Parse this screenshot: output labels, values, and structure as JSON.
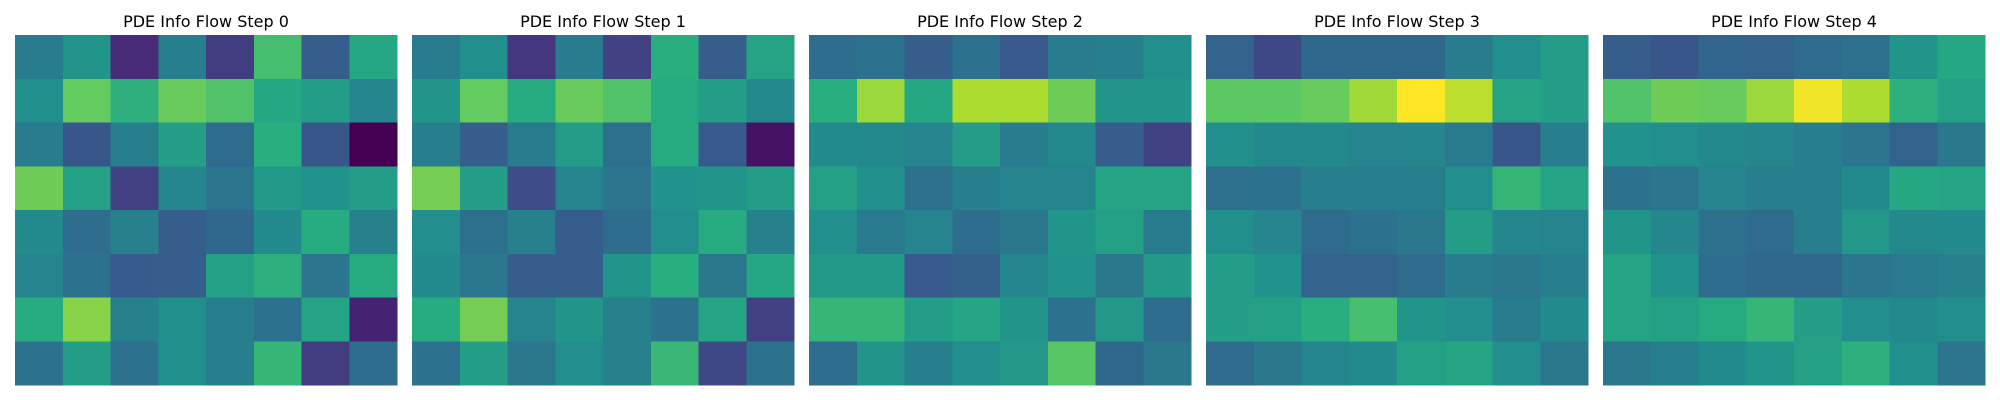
{
  "chart_data": [
    {
      "type": "heatmap",
      "title": "PDE Info Flow Step 0",
      "colormap": "viridis",
      "vmin": 0,
      "vmax": 1,
      "grid": false,
      "rows": 8,
      "cols": 8,
      "values": [
        [
          0.42,
          0.52,
          0.12,
          0.43,
          0.18,
          0.7,
          0.3,
          0.6
        ],
        [
          0.5,
          0.76,
          0.64,
          0.77,
          0.72,
          0.6,
          0.55,
          0.46
        ],
        [
          0.42,
          0.27,
          0.43,
          0.56,
          0.35,
          0.63,
          0.27,
          0.0
        ],
        [
          0.78,
          0.57,
          0.2,
          0.46,
          0.39,
          0.54,
          0.51,
          0.55
        ],
        [
          0.48,
          0.36,
          0.44,
          0.3,
          0.34,
          0.48,
          0.62,
          0.44
        ],
        [
          0.45,
          0.38,
          0.29,
          0.3,
          0.57,
          0.64,
          0.39,
          0.61
        ],
        [
          0.62,
          0.82,
          0.44,
          0.5,
          0.43,
          0.38,
          0.58,
          0.1
        ],
        [
          0.38,
          0.56,
          0.38,
          0.5,
          0.43,
          0.66,
          0.18,
          0.36
        ]
      ]
    },
    {
      "type": "heatmap",
      "title": "PDE Info Flow Step 1",
      "colormap": "viridis",
      "vmin": 0,
      "vmax": 1,
      "grid": false,
      "rows": 8,
      "cols": 8,
      "values": [
        [
          0.42,
          0.5,
          0.16,
          0.42,
          0.2,
          0.63,
          0.3,
          0.58
        ],
        [
          0.52,
          0.76,
          0.62,
          0.77,
          0.72,
          0.61,
          0.55,
          0.47
        ],
        [
          0.43,
          0.3,
          0.42,
          0.55,
          0.37,
          0.62,
          0.28,
          0.05
        ],
        [
          0.79,
          0.56,
          0.23,
          0.45,
          0.39,
          0.51,
          0.52,
          0.56
        ],
        [
          0.49,
          0.37,
          0.44,
          0.3,
          0.36,
          0.49,
          0.62,
          0.44
        ],
        [
          0.48,
          0.4,
          0.3,
          0.3,
          0.52,
          0.63,
          0.4,
          0.6
        ],
        [
          0.62,
          0.79,
          0.45,
          0.52,
          0.44,
          0.38,
          0.59,
          0.2
        ],
        [
          0.38,
          0.56,
          0.4,
          0.49,
          0.44,
          0.67,
          0.22,
          0.38
        ]
      ]
    },
    {
      "type": "heatmap",
      "title": "PDE Info Flow Step 2",
      "colormap": "viridis",
      "vmin": 0,
      "vmax": 1,
      "grid": false,
      "rows": 8,
      "cols": 8,
      "values": [
        [
          0.36,
          0.38,
          0.3,
          0.38,
          0.28,
          0.42,
          0.43,
          0.5
        ],
        [
          0.63,
          0.85,
          0.6,
          0.88,
          0.88,
          0.78,
          0.52,
          0.52
        ],
        [
          0.48,
          0.47,
          0.45,
          0.55,
          0.42,
          0.47,
          0.3,
          0.2
        ],
        [
          0.57,
          0.5,
          0.37,
          0.43,
          0.45,
          0.45,
          0.59,
          0.59
        ],
        [
          0.5,
          0.41,
          0.45,
          0.36,
          0.4,
          0.52,
          0.57,
          0.42
        ],
        [
          0.54,
          0.54,
          0.28,
          0.31,
          0.46,
          0.51,
          0.4,
          0.54
        ],
        [
          0.66,
          0.66,
          0.55,
          0.59,
          0.52,
          0.38,
          0.53,
          0.36
        ],
        [
          0.36,
          0.52,
          0.43,
          0.49,
          0.53,
          0.74,
          0.34,
          0.4
        ]
      ]
    },
    {
      "type": "heatmap",
      "title": "PDE Info Flow Step 3",
      "colormap": "viridis",
      "vmin": 0,
      "vmax": 1,
      "grid": false,
      "rows": 8,
      "cols": 8,
      "values": [
        [
          0.32,
          0.22,
          0.34,
          0.34,
          0.34,
          0.42,
          0.49,
          0.55
        ],
        [
          0.75,
          0.75,
          0.77,
          0.86,
          1.0,
          0.9,
          0.58,
          0.56
        ],
        [
          0.5,
          0.47,
          0.47,
          0.45,
          0.46,
          0.41,
          0.27,
          0.43
        ],
        [
          0.37,
          0.38,
          0.43,
          0.43,
          0.43,
          0.49,
          0.66,
          0.58
        ],
        [
          0.5,
          0.45,
          0.35,
          0.38,
          0.4,
          0.55,
          0.46,
          0.45
        ],
        [
          0.55,
          0.51,
          0.32,
          0.32,
          0.35,
          0.42,
          0.4,
          0.43
        ],
        [
          0.56,
          0.57,
          0.63,
          0.7,
          0.52,
          0.49,
          0.42,
          0.48
        ],
        [
          0.35,
          0.4,
          0.46,
          0.48,
          0.57,
          0.59,
          0.49,
          0.4
        ]
      ]
    },
    {
      "type": "heatmap",
      "title": "PDE Info Flow Step 4",
      "colormap": "viridis",
      "vmin": 0,
      "vmax": 1,
      "grid": false,
      "rows": 8,
      "cols": 8,
      "values": [
        [
          0.3,
          0.27,
          0.33,
          0.32,
          0.35,
          0.37,
          0.52,
          0.6
        ],
        [
          0.72,
          0.78,
          0.77,
          0.85,
          0.98,
          0.88,
          0.64,
          0.57
        ],
        [
          0.51,
          0.49,
          0.47,
          0.46,
          0.43,
          0.39,
          0.32,
          0.4
        ],
        [
          0.38,
          0.39,
          0.45,
          0.43,
          0.43,
          0.48,
          0.6,
          0.58
        ],
        [
          0.52,
          0.46,
          0.37,
          0.35,
          0.43,
          0.53,
          0.47,
          0.48
        ],
        [
          0.59,
          0.51,
          0.36,
          0.34,
          0.34,
          0.39,
          0.41,
          0.44
        ],
        [
          0.58,
          0.57,
          0.61,
          0.66,
          0.56,
          0.49,
          0.47,
          0.49
        ],
        [
          0.4,
          0.43,
          0.48,
          0.52,
          0.57,
          0.64,
          0.5,
          0.39
        ]
      ]
    }
  ]
}
